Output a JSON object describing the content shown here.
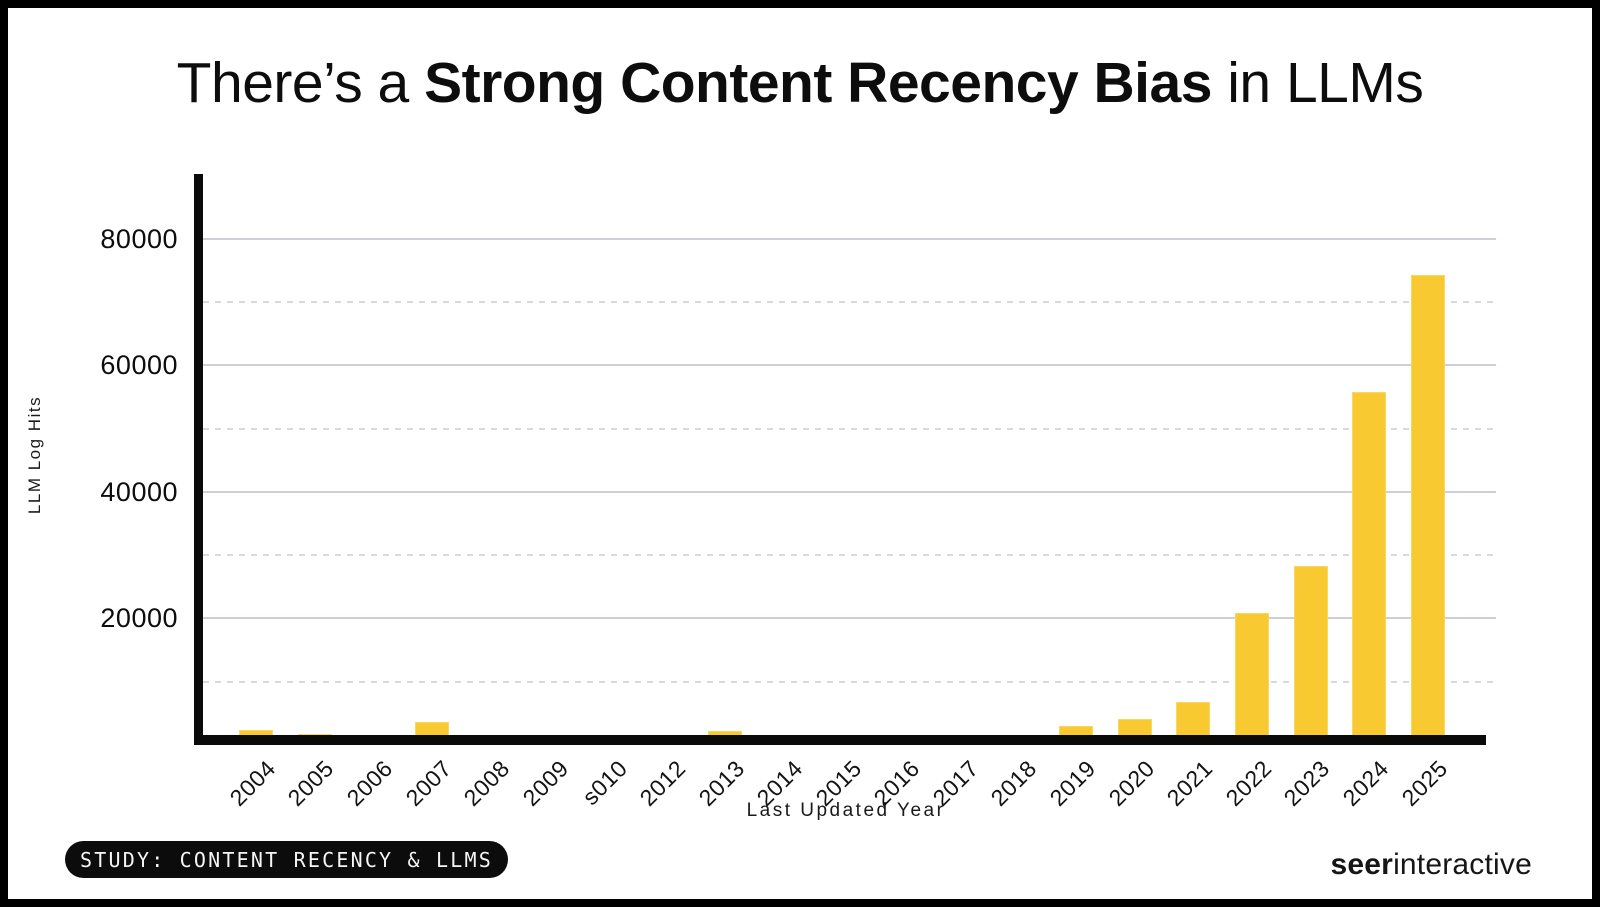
{
  "title": {
    "prefix": "There’s a ",
    "bold": "Strong Content Recency Bias",
    "suffix": " in LLMs"
  },
  "chart_data": {
    "type": "bar",
    "title": "There’s a Strong Content Recency Bias in LLMs",
    "xlabel": "Last Updated Year",
    "ylabel": "LLM Log Hits",
    "categories": [
      "2004",
      "2005",
      "2006",
      "2007",
      "2008",
      "2009",
      "s010",
      "2012",
      "2013",
      "2014",
      "2015",
      "2016",
      "2017",
      "2018",
      "2019",
      "2020",
      "2021",
      "2022",
      "2023",
      "2024",
      "2025"
    ],
    "values": [
      2300,
      1700,
      1600,
      3700,
      0,
      0,
      0,
      0,
      2200,
      0,
      0,
      0,
      0,
      0,
      3000,
      4100,
      6800,
      20800,
      28300,
      55700,
      74300
    ],
    "ylim": [
      0,
      90000
    ],
    "yticks_major": [
      20000,
      40000,
      60000,
      80000
    ],
    "yticks_minor_dashed": [
      10000,
      30000,
      50000,
      70000
    ],
    "grid": true,
    "legend": "none",
    "bar_color": "#F9C932",
    "gridline_color": "#cfcfda",
    "axis_color": "#0a0a0a"
  },
  "footer": {
    "badge": "STUDY: CONTENT RECENCY & LLMS",
    "logo_bold": "seer",
    "logo_regular": "interactive"
  }
}
